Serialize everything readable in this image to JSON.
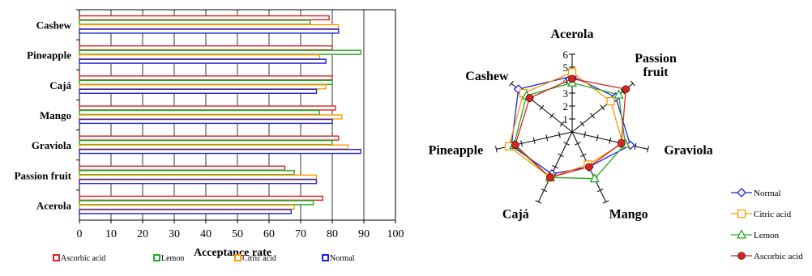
{
  "chart_data": [
    {
      "type": "bar",
      "orientation": "horizontal",
      "categories": [
        "Acerola",
        "Passion fruit",
        "Graviola",
        "Mango",
        "Cajá",
        "Pineapple",
        "Cashew"
      ],
      "series": [
        {
          "name": "Normal",
          "color": "#2222dd",
          "values": [
            67,
            75,
            89,
            80,
            75,
            78,
            82
          ]
        },
        {
          "name": "Citric acid",
          "color": "#ff9900",
          "values": [
            68,
            75,
            85,
            83,
            78,
            76,
            82
          ]
        },
        {
          "name": "Lemon",
          "color": "#22aa22",
          "values": [
            74,
            68,
            80,
            76,
            80,
            89,
            73
          ]
        },
        {
          "name": "Ascorbic acid",
          "color": "#dd2222",
          "values": [
            77,
            65,
            82,
            81,
            80,
            80,
            79
          ]
        }
      ],
      "xlabel": "Acceptance rate",
      "xlim": [
        0,
        100
      ],
      "xticks": [
        "0",
        "10",
        "20",
        "30",
        "40",
        "50",
        "60",
        "70",
        "80",
        "90",
        "100"
      ],
      "legend_position": "bottom",
      "legend_order": [
        "Ascorbic acid",
        "Lemon",
        "Citric acid",
        "Normal"
      ],
      "grid": true
    },
    {
      "type": "radar",
      "axes": [
        "Acerola",
        "Passion fruit",
        "Graviola",
        "Mango",
        "Cajá",
        "Pineapple",
        "Cashew"
      ],
      "axis_label_lines": [
        [
          "Acerola"
        ],
        [
          "Passion",
          "fruit"
        ],
        [
          "Graviola"
        ],
        [
          "Mango"
        ],
        [
          "Cajá"
        ],
        [
          "Pineapple"
        ],
        [
          "Cashew"
        ]
      ],
      "rlim": [
        0,
        6
      ],
      "rticks": [
        "1",
        "2",
        "3",
        "4",
        "5",
        "6"
      ],
      "series": [
        {
          "name": "Normal",
          "color": "#2222dd",
          "marker": "diamond",
          "values": [
            4.3,
            4.3,
            4.6,
            3.0,
            3.6,
            4.8,
            5.3
          ]
        },
        {
          "name": "Citric acid",
          "color": "#ff9900",
          "marker": "square",
          "values": [
            4.6,
            3.8,
            4.0,
            2.8,
            3.9,
            5.0,
            4.8
          ]
        },
        {
          "name": "Lemon",
          "color": "#22aa22",
          "marker": "triangle",
          "values": [
            3.8,
            4.6,
            4.2,
            4.0,
            3.9,
            4.6,
            4.5
          ]
        },
        {
          "name": "Ascorbic acid",
          "color": "#dd2222",
          "marker": "circle",
          "values": [
            4.1,
            5.3,
            3.9,
            3.0,
            3.9,
            4.5,
            4.2
          ]
        }
      ],
      "legend_position": "bottom-right",
      "legend_order": [
        "Normal",
        "Citric acid",
        "Lemon",
        "Ascorbic acid"
      ]
    }
  ]
}
